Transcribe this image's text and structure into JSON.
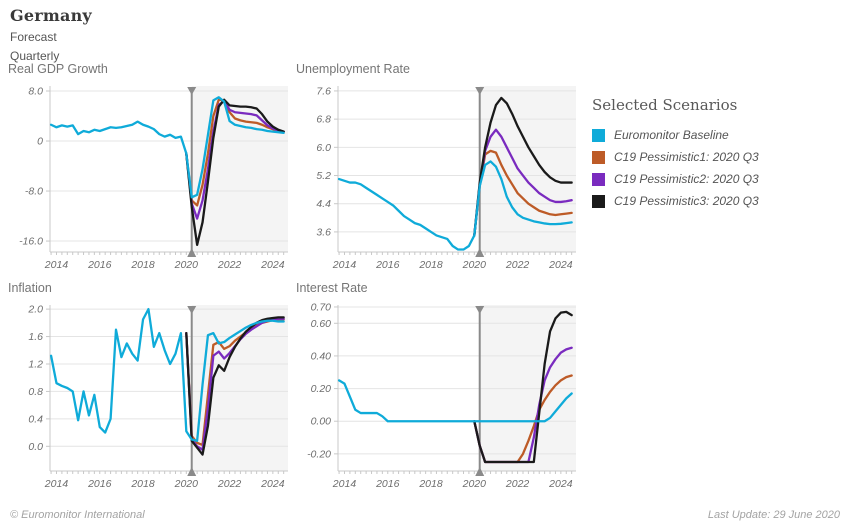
{
  "header": {
    "title": "Germany",
    "forecast_label": "Forecast",
    "frequency_label": "Quarterly"
  },
  "legend": {
    "title": "Selected Scenarios",
    "items": [
      {
        "label": "Euromonitor Baseline",
        "color": "#0fabd9"
      },
      {
        "label": "C19 Pessimistic1: 2020 Q3",
        "color": "#bd5b27"
      },
      {
        "label": "C19 Pessimistic2: 2020 Q3",
        "color": "#7a2bbf"
      },
      {
        "label": "C19 Pessimistic3: 2020 Q3",
        "color": "#1a1a1a"
      }
    ]
  },
  "footer": {
    "left": "© Euromonitor International",
    "right": "Last Update: 29 June 2020"
  },
  "style": {
    "grid_color": "#e4e4e4",
    "axis_color": "#c8c8c8",
    "tick_label_color": "#6e6e6e",
    "forecast_band_color": "#f4f4f4",
    "marker_color": "#8a8a8a"
  },
  "forecast_marker_x": 2020.25,
  "chart_data": [
    {
      "type": "line",
      "title": "Real GDP Growth",
      "xlim": [
        2013.7,
        2024.7
      ],
      "ylim": [
        -17.75,
        8.8
      ],
      "x_tick_years": [
        2014,
        2016,
        2018,
        2020,
        2022,
        2024
      ],
      "y_ticks": [
        {
          "v": 8,
          "label": "8.0"
        },
        {
          "v": 0,
          "label": "0"
        },
        {
          "v": -8,
          "label": "-8.0"
        },
        {
          "v": -16,
          "label": "-16.0"
        }
      ],
      "x_step": 0.25,
      "series": [
        {
          "name": "Euromonitor Baseline",
          "color": "#0fabd9",
          "x_start": 2013.75,
          "values": [
            2.6,
            2.2,
            2.5,
            2.3,
            2.5,
            1.1,
            1.6,
            1.4,
            1.8,
            1.6,
            1.9,
            2.2,
            2.1,
            2.2,
            2.4,
            2.6,
            3.1,
            2.6,
            2.3,
            1.9,
            1.1,
            0.7,
            1.0,
            0.5,
            0.7,
            -2.0,
            -9.0,
            -8.6,
            -4.5,
            1.0,
            6.5,
            7.0,
            6.3,
            3.2,
            2.6,
            2.4,
            2.2,
            2.1,
            1.9,
            1.8,
            1.6,
            1.5,
            1.4,
            1.3
          ]
        },
        {
          "name": "C19 Pessimistic1: 2020 Q3",
          "color": "#bd5b27",
          "x_start": 2020.0,
          "values": [
            -2.0,
            -9.5,
            -10.3,
            -7.0,
            -2.0,
            4.0,
            6.6,
            6.5,
            4.6,
            3.6,
            3.3,
            3.1,
            3.0,
            2.9,
            2.6,
            2.2,
            1.9,
            1.6,
            1.45
          ]
        },
        {
          "name": "C19 Pessimistic2: 2020 Q3",
          "color": "#7a2bbf",
          "x_start": 2020.0,
          "values": [
            -2.0,
            -10.0,
            -12.4,
            -9.5,
            -4.5,
            1.5,
            5.8,
            6.4,
            5.0,
            4.6,
            4.5,
            4.4,
            4.3,
            4.1,
            3.3,
            2.5,
            2.0,
            1.7,
            1.5
          ]
        },
        {
          "name": "C19 Pessimistic3: 2020 Q3",
          "color": "#1a1a1a",
          "x_start": 2020.0,
          "values": [
            -2.0,
            -10.5,
            -16.6,
            -13.0,
            -6.5,
            0.5,
            5.5,
            6.6,
            5.7,
            5.6,
            5.5,
            5.5,
            5.4,
            5.2,
            4.3,
            3.1,
            2.3,
            1.8,
            1.5
          ]
        }
      ]
    },
    {
      "type": "line",
      "title": "Unemployment Rate",
      "xlim": [
        2013.7,
        2024.7
      ],
      "ylim": [
        3.03,
        7.74
      ],
      "x_tick_years": [
        2014,
        2016,
        2018,
        2020,
        2022,
        2024
      ],
      "y_ticks": [
        {
          "v": 7.6,
          "label": "7.6"
        },
        {
          "v": 6.8,
          "label": "6.8"
        },
        {
          "v": 6.0,
          "label": "6.0"
        },
        {
          "v": 5.2,
          "label": "5.2"
        },
        {
          "v": 4.4,
          "label": "4.4"
        },
        {
          "v": 3.6,
          "label": "3.6"
        }
      ],
      "x_step": 0.25,
      "series": [
        {
          "name": "Euromonitor Baseline",
          "color": "#0fabd9",
          "x_start": 2013.75,
          "values": [
            5.1,
            5.05,
            5.0,
            5.0,
            4.95,
            4.85,
            4.75,
            4.65,
            4.55,
            4.45,
            4.35,
            4.2,
            4.05,
            3.95,
            3.85,
            3.8,
            3.7,
            3.6,
            3.5,
            3.45,
            3.4,
            3.2,
            3.1,
            3.1,
            3.2,
            3.5,
            4.9,
            5.5,
            5.6,
            5.45,
            5.1,
            4.6,
            4.3,
            4.1,
            4.0,
            3.95,
            3.9,
            3.87,
            3.84,
            3.82,
            3.82,
            3.83,
            3.85,
            3.87
          ]
        },
        {
          "name": "C19 Pessimistic1: 2020 Q3",
          "color": "#bd5b27",
          "x_start": 2020.0,
          "values": [
            3.5,
            4.9,
            5.8,
            5.9,
            5.85,
            5.5,
            5.2,
            4.95,
            4.7,
            4.55,
            4.4,
            4.3,
            4.2,
            4.15,
            4.1,
            4.08,
            4.1,
            4.12,
            4.14
          ]
        },
        {
          "name": "C19 Pessimistic2: 2020 Q3",
          "color": "#7a2bbf",
          "x_start": 2020.0,
          "values": [
            3.5,
            4.95,
            5.9,
            6.3,
            6.5,
            6.3,
            6.0,
            5.7,
            5.4,
            5.2,
            5.0,
            4.85,
            4.7,
            4.6,
            4.5,
            4.45,
            4.45,
            4.47,
            4.5
          ]
        },
        {
          "name": "C19 Pessimistic3: 2020 Q3",
          "color": "#1a1a1a",
          "x_start": 2020.0,
          "values": [
            3.5,
            5.0,
            6.0,
            6.7,
            7.2,
            7.4,
            7.25,
            6.95,
            6.6,
            6.3,
            6.0,
            5.75,
            5.5,
            5.3,
            5.15,
            5.05,
            5.0,
            5.0,
            5.0
          ]
        }
      ]
    },
    {
      "type": "line",
      "title": "Inflation",
      "xlim": [
        2013.7,
        2024.7
      ],
      "ylim": [
        -0.36,
        2.06
      ],
      "x_tick_years": [
        2014,
        2016,
        2018,
        2020,
        2022,
        2024
      ],
      "y_ticks": [
        {
          "v": 2.0,
          "label": "2.0"
        },
        {
          "v": 1.6,
          "label": "1.6"
        },
        {
          "v": 1.2,
          "label": "1.2"
        },
        {
          "v": 0.8,
          "label": "0.8"
        },
        {
          "v": 0.4,
          "label": "0.4"
        },
        {
          "v": 0.0,
          "label": "0.0"
        }
      ],
      "x_step": 0.25,
      "series": [
        {
          "name": "Euromonitor Baseline",
          "color": "#0fabd9",
          "x_start": 2013.75,
          "values": [
            1.32,
            0.92,
            0.88,
            0.85,
            0.8,
            0.38,
            0.8,
            0.45,
            0.75,
            0.28,
            0.2,
            0.4,
            1.7,
            1.3,
            1.5,
            1.35,
            1.25,
            1.85,
            2.0,
            1.45,
            1.65,
            1.4,
            1.2,
            1.35,
            1.65,
            0.22,
            0.1,
            0.08,
            0.9,
            1.62,
            1.65,
            1.5,
            1.52,
            1.58,
            1.63,
            1.68,
            1.73,
            1.77,
            1.8,
            1.82,
            1.83,
            1.83,
            1.82,
            1.82
          ]
        },
        {
          "name": "C19 Pessimistic1: 2020 Q3",
          "color": "#bd5b27",
          "x_start": 2020.0,
          "values": [
            1.65,
            0.15,
            0.05,
            0.02,
            0.75,
            1.48,
            1.52,
            1.42,
            1.46,
            1.54,
            1.6,
            1.66,
            1.72,
            1.76,
            1.8,
            1.82,
            1.84,
            1.85,
            1.85
          ]
        },
        {
          "name": "C19 Pessimistic2: 2020 Q3",
          "color": "#7a2bbf",
          "x_start": 2020.0,
          "values": [
            1.65,
            0.1,
            0.0,
            -0.05,
            0.55,
            1.32,
            1.38,
            1.28,
            1.36,
            1.46,
            1.56,
            1.64,
            1.7,
            1.75,
            1.8,
            1.83,
            1.85,
            1.86,
            1.86
          ]
        },
        {
          "name": "C19 Pessimistic3: 2020 Q3",
          "color": "#1a1a1a",
          "x_start": 2020.0,
          "values": [
            1.65,
            0.08,
            -0.02,
            -0.12,
            0.3,
            1.0,
            1.18,
            1.1,
            1.3,
            1.45,
            1.57,
            1.67,
            1.74,
            1.8,
            1.84,
            1.86,
            1.87,
            1.88,
            1.88
          ]
        }
      ]
    },
    {
      "type": "line",
      "title": "Interest Rate",
      "xlim": [
        2013.7,
        2024.7
      ],
      "ylim": [
        -0.305,
        0.712
      ],
      "x_tick_years": [
        2014,
        2016,
        2018,
        2020,
        2022,
        2024
      ],
      "y_ticks": [
        {
          "v": 0.7,
          "label": "0.70"
        },
        {
          "v": 0.6,
          "label": "0.60"
        },
        {
          "v": 0.4,
          "label": "0.40"
        },
        {
          "v": 0.2,
          "label": "0.20"
        },
        {
          "v": 0.0,
          "label": "0.00"
        },
        {
          "v": -0.2,
          "label": "-0.20"
        }
      ],
      "x_step": 0.25,
      "series": [
        {
          "name": "Euromonitor Baseline",
          "color": "#0fabd9",
          "x_start": 2013.75,
          "values": [
            0.25,
            0.23,
            0.15,
            0.07,
            0.05,
            0.05,
            0.05,
            0.05,
            0.03,
            0.0,
            0.0,
            0.0,
            0.0,
            0.0,
            0.0,
            0.0,
            0.0,
            0.0,
            0.0,
            0.0,
            0.0,
            0.0,
            0.0,
            0.0,
            0.0,
            0.0,
            0.0,
            0.0,
            0.0,
            0.0,
            0.0,
            0.0,
            0.0,
            0.0,
            0.0,
            0.0,
            0.0,
            0.0,
            0.0,
            0.02,
            0.06,
            0.1,
            0.14,
            0.17
          ]
        },
        {
          "name": "C19 Pessimistic1: 2020 Q3",
          "color": "#bd5b27",
          "x_start": 2020.0,
          "values": [
            0.0,
            -0.15,
            -0.25,
            -0.25,
            -0.25,
            -0.25,
            -0.25,
            -0.25,
            -0.25,
            -0.2,
            -0.12,
            -0.03,
            0.07,
            0.13,
            0.18,
            0.22,
            0.25,
            0.27,
            0.28
          ]
        },
        {
          "name": "C19 Pessimistic2: 2020 Q3",
          "color": "#7a2bbf",
          "x_start": 2020.0,
          "values": [
            0.0,
            -0.15,
            -0.25,
            -0.25,
            -0.25,
            -0.25,
            -0.25,
            -0.25,
            -0.25,
            -0.25,
            -0.25,
            -0.1,
            0.1,
            0.25,
            0.33,
            0.38,
            0.42,
            0.44,
            0.45
          ]
        },
        {
          "name": "C19 Pessimistic3: 2020 Q3",
          "color": "#1a1a1a",
          "x_start": 2020.0,
          "values": [
            0.0,
            -0.15,
            -0.25,
            -0.25,
            -0.25,
            -0.25,
            -0.25,
            -0.25,
            -0.25,
            -0.25,
            -0.25,
            -0.25,
            0.05,
            0.35,
            0.55,
            0.63,
            0.665,
            0.67,
            0.65
          ]
        }
      ]
    }
  ]
}
